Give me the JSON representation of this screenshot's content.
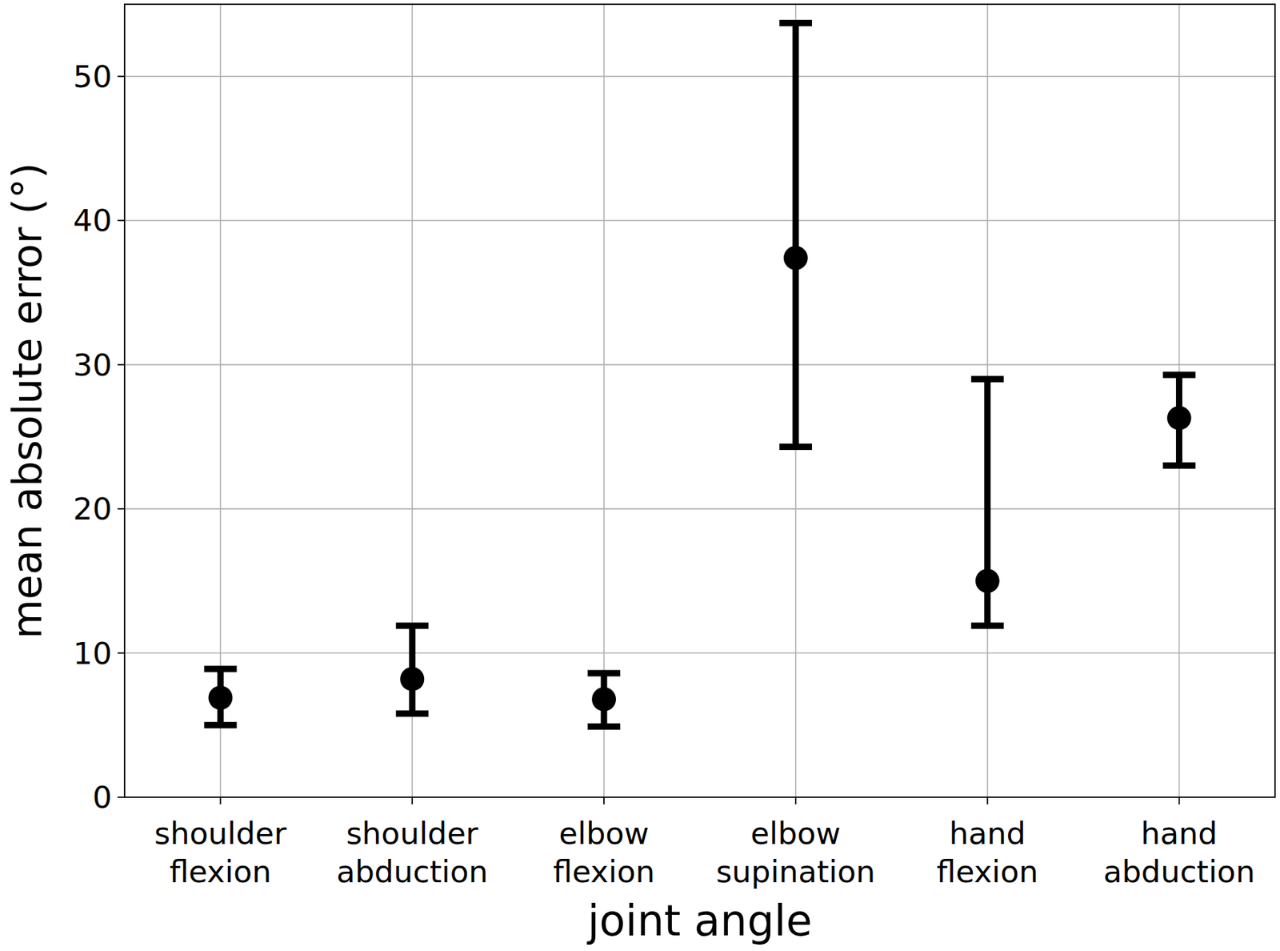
{
  "chart_data": {
    "type": "errorbar",
    "x_label": "joint angle",
    "y_label": "mean absolute error (°)",
    "categories": [
      "shoulder flexion",
      "shoulder abduction",
      "elbow flexion",
      "elbow supination",
      "hand flexion",
      "hand abduction"
    ],
    "values": [
      6.9,
      8.2,
      6.8,
      37.4,
      15.0,
      26.3
    ],
    "lower": [
      5.0,
      5.8,
      4.9,
      24.3,
      11.9,
      23.0
    ],
    "upper": [
      8.9,
      11.9,
      8.6,
      53.7,
      29.0,
      29.3
    ],
    "color": "#000000",
    "marker": "circle",
    "ylim": [
      0,
      55
    ],
    "yticks": [
      0,
      10,
      20,
      30,
      40,
      50
    ],
    "grid": true
  }
}
